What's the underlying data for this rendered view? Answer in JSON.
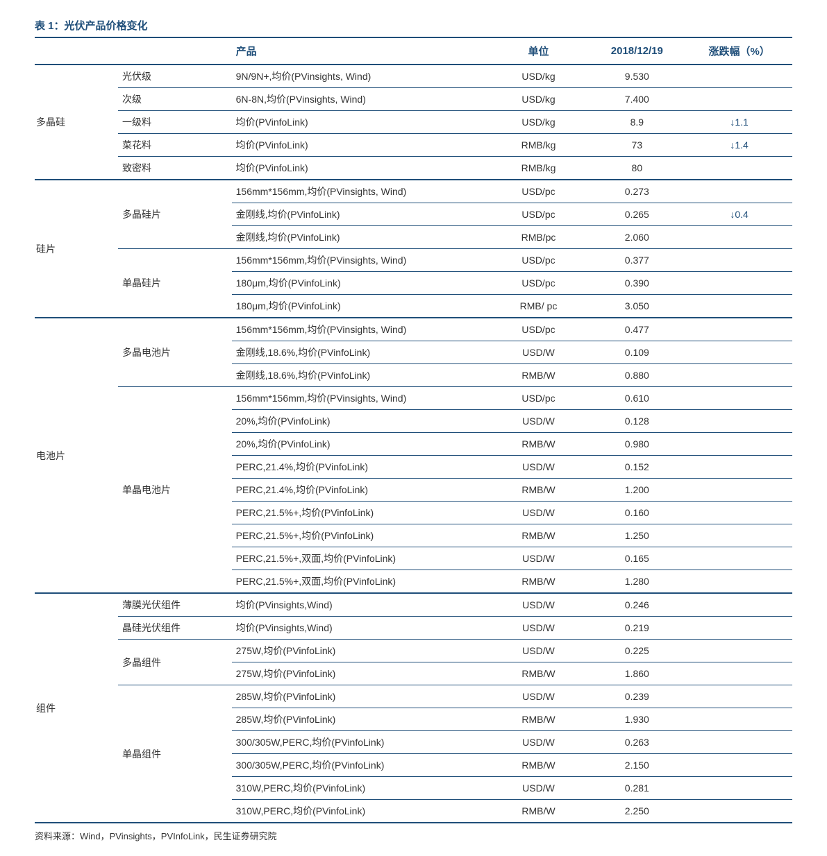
{
  "title": "表 1：光伏产品价格变化",
  "columns": {
    "product": "产品",
    "unit": "单位",
    "date": "2018/12/19",
    "change": "涨跌幅（%）"
  },
  "colors": {
    "accent": "#1f4e79",
    "text": "#333333",
    "background": "#ffffff"
  },
  "table": [
    {
      "category": "多晶硅",
      "subgroups": [
        {
          "sub": "光伏级",
          "rows": [
            {
              "product": "9N/9N+,均价(PVinsights, Wind)",
              "unit": "USD/kg",
              "price": "9.530",
              "change": ""
            }
          ]
        },
        {
          "sub": "次级",
          "rows": [
            {
              "product": "6N-8N,均价(PVinsights, Wind)",
              "unit": "USD/kg",
              "price": "7.400",
              "change": ""
            }
          ]
        },
        {
          "sub": "一级料",
          "rows": [
            {
              "product": "均价(PVinfoLink)",
              "unit": "USD/kg",
              "price": "8.9",
              "change": "↓1.1"
            }
          ]
        },
        {
          "sub": "菜花料",
          "rows": [
            {
              "product": "均价(PVinfoLink)",
              "unit": "RMB/kg",
              "price": "73",
              "change": "↓1.4"
            }
          ]
        },
        {
          "sub": "致密料",
          "rows": [
            {
              "product": "均价(PVinfoLink)",
              "unit": "RMB/kg",
              "price": "80",
              "change": ""
            }
          ]
        }
      ]
    },
    {
      "category": "硅片",
      "subgroups": [
        {
          "sub": "多晶硅片",
          "rows": [
            {
              "product": "156mm*156mm,均价(PVinsights, Wind)",
              "unit": "USD/pc",
              "price": "0.273",
              "change": ""
            },
            {
              "product": "金刚线,均价(PVinfoLink)",
              "unit": "USD/pc",
              "price": "0.265",
              "change": "↓0.4"
            },
            {
              "product": "金刚线,均价(PVinfoLink)",
              "unit": "RMB/pc",
              "price": "2.060",
              "change": ""
            }
          ]
        },
        {
          "sub": "单晶硅片",
          "rows": [
            {
              "product": "156mm*156mm,均价(PVinsights, Wind)",
              "unit": "USD/pc",
              "price": "0.377",
              "change": ""
            },
            {
              "product": "180μm,均价(PVinfoLink)",
              "unit": "USD/pc",
              "price": "0.390",
              "change": ""
            },
            {
              "product": "180μm,均价(PVinfoLink)",
              "unit": "RMB/ pc",
              "price": "3.050",
              "change": ""
            }
          ]
        }
      ]
    },
    {
      "category": "电池片",
      "subgroups": [
        {
          "sub": "多晶电池片",
          "rows": [
            {
              "product": "156mm*156mm,均价(PVinsights, Wind)",
              "unit": "USD/pc",
              "price": "0.477",
              "change": ""
            },
            {
              "product": "金刚线,18.6%,均价(PVinfoLink)",
              "unit": "USD/W",
              "price": "0.109",
              "change": ""
            },
            {
              "product": "金刚线,18.6%,均价(PVinfoLink)",
              "unit": "RMB/W",
              "price": "0.880",
              "change": ""
            }
          ]
        },
        {
          "sub": "单晶电池片",
          "rows": [
            {
              "product": "156mm*156mm,均价(PVinsights, Wind)",
              "unit": "USD/pc",
              "price": "0.610",
              "change": ""
            },
            {
              "product": "20%,均价(PVinfoLink)",
              "unit": "USD/W",
              "price": "0.128",
              "change": ""
            },
            {
              "product": "20%,均价(PVinfoLink)",
              "unit": "RMB/W",
              "price": "0.980",
              "change": ""
            },
            {
              "product": "PERC,21.4%,均价(PVinfoLink)",
              "unit": "USD/W",
              "price": "0.152",
              "change": ""
            },
            {
              "product": "PERC,21.4%,均价(PVinfoLink)",
              "unit": "RMB/W",
              "price": "1.200",
              "change": ""
            },
            {
              "product": "PERC,21.5%+,均价(PVinfoLink)",
              "unit": "USD/W",
              "price": "0.160",
              "change": ""
            },
            {
              "product": "PERC,21.5%+,均价(PVinfoLink)",
              "unit": "RMB/W",
              "price": "1.250",
              "change": ""
            },
            {
              "product": "PERC,21.5%+,双面,均价(PVinfoLink)",
              "unit": "USD/W",
              "price": "0.165",
              "change": ""
            },
            {
              "product": "PERC,21.5%+,双面,均价(PVinfoLink)",
              "unit": "RMB/W",
              "price": "1.280",
              "change": ""
            }
          ]
        }
      ]
    },
    {
      "category": "组件",
      "subgroups": [
        {
          "sub": "薄膜光伏组件",
          "rows": [
            {
              "product": "均价(PVinsights,Wind)",
              "unit": "USD/W",
              "price": "0.246",
              "change": ""
            }
          ]
        },
        {
          "sub": "晶硅光伏组件",
          "rows": [
            {
              "product": "均价(PVinsights,Wind)",
              "unit": "USD/W",
              "price": "0.219",
              "change": ""
            }
          ]
        },
        {
          "sub": "多晶组件",
          "rows": [
            {
              "product": "275W,均价(PVinfoLink)",
              "unit": "USD/W",
              "price": "0.225",
              "change": ""
            },
            {
              "product": "275W,均价(PVinfoLink)",
              "unit": "RMB/W",
              "price": "1.860",
              "change": ""
            }
          ]
        },
        {
          "sub": "单晶组件",
          "rows": [
            {
              "product": "285W,均价(PVinfoLink)",
              "unit": "USD/W",
              "price": "0.239",
              "change": ""
            },
            {
              "product": "285W,均价(PVinfoLink)",
              "unit": "RMB/W",
              "price": "1.930",
              "change": ""
            },
            {
              "product": "300/305W,PERC,均价(PVinfoLink)",
              "unit": "USD/W",
              "price": "0.263",
              "change": ""
            },
            {
              "product": "300/305W,PERC,均价(PVinfoLink)",
              "unit": "RMB/W",
              "price": "2.150",
              "change": ""
            },
            {
              "product": "310W,PERC,均价(PVinfoLink)",
              "unit": "USD/W",
              "price": "0.281",
              "change": ""
            },
            {
              "product": "310W,PERC,均价(PVinfoLink)",
              "unit": "RMB/W",
              "price": "2.250",
              "change": ""
            }
          ]
        }
      ]
    }
  ],
  "source": "资料来源：Wind，PVinsights，PVInfoLink，民生证券研究院"
}
